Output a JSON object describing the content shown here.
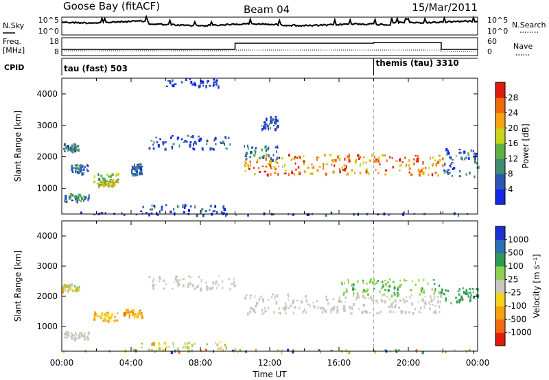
{
  "header": {
    "station": "Goose Bay (fitACF)",
    "beam": "Beam 04",
    "date": "15/Mar/2011"
  },
  "noise_panel": {
    "left_label": "N.Sky",
    "right_label": "N.Search",
    "left_ticks": [
      "10^5",
      "10^0"
    ],
    "right_ticks": [
      "10^5",
      "10^0"
    ]
  },
  "freq_panel": {
    "left_label_1": "Freq.",
    "left_label_2": "[MHz]",
    "right_label": "Nave",
    "left_ticks": [
      "18",
      "8"
    ],
    "right_ticks": [
      "60",
      "0"
    ]
  },
  "cpid_panel": {
    "label": "CPID",
    "mode_1": "tau (fast) 503",
    "mode_2": "themis (tau) 3310",
    "mode_2_start_hour": 18
  },
  "chart_data": [
    {
      "type": "heatmap",
      "title": "",
      "quantity": "Power",
      "ylabel": "Slant Range [km]",
      "yticks": [
        1000,
        2000,
        3000,
        4000
      ],
      "ylim": [
        180,
        4500
      ],
      "xlim_hours": [
        0,
        24
      ],
      "colorbar_label": "Power [dB]",
      "colorbar_ticks": [
        "4",
        "8",
        "12",
        "16",
        "20",
        "24",
        "28"
      ],
      "colorbar_colors": [
        "#1428e6",
        "#2a56b4",
        "#3f8c73",
        "#5fb045",
        "#c9d41c",
        "#f5a40f",
        "#f06a0c",
        "#e01b10"
      ],
      "scatter_regions": [
        {
          "t": [
            0.0,
            1.0
          ],
          "r": [
            2200,
            2450
          ],
          "level": [
            0.1,
            0.5
          ]
        },
        {
          "t": [
            0.1,
            1.6
          ],
          "r": [
            600,
            850
          ],
          "level": [
            0.1,
            0.5
          ]
        },
        {
          "t": [
            0.5,
            1.5
          ],
          "r": [
            1500,
            1800
          ],
          "level": [
            0.1,
            0.4
          ]
        },
        {
          "t": [
            1.8,
            3.2
          ],
          "r": [
            1200,
            1500
          ],
          "level": [
            0.3,
            0.6
          ]
        },
        {
          "t": [
            2.0,
            3.0
          ],
          "r": [
            1100,
            1250
          ],
          "level": [
            0.4,
            0.7
          ]
        },
        {
          "t": [
            4.0,
            4.6
          ],
          "r": [
            1450,
            1800
          ],
          "level": [
            0.1,
            0.4
          ]
        },
        {
          "t": [
            5.0,
            10.0
          ],
          "r": [
            2250,
            2700
          ],
          "level": [
            0.0,
            0.3
          ]
        },
        {
          "t": [
            6.0,
            9.0
          ],
          "r": [
            4250,
            4500
          ],
          "level": [
            0.0,
            0.2
          ]
        },
        {
          "t": [
            4.5,
            9.5
          ],
          "r": [
            200,
            500
          ],
          "level": [
            0.0,
            0.3
          ]
        },
        {
          "t": [
            10.5,
            22.0
          ],
          "r": [
            1450,
            2100
          ],
          "level": [
            0.5,
            1.0
          ]
        },
        {
          "t": [
            10.5,
            12.5
          ],
          "r": [
            1900,
            2400
          ],
          "level": [
            0.1,
            0.5
          ]
        },
        {
          "t": [
            11.5,
            12.5
          ],
          "r": [
            2900,
            3300
          ],
          "level": [
            0.0,
            0.3
          ]
        },
        {
          "t": [
            22.0,
            24.0
          ],
          "r": [
            1400,
            2300
          ],
          "level": [
            0.0,
            0.4
          ]
        },
        {
          "t": [
            0.0,
            24.0
          ],
          "r": [
            180,
            260
          ],
          "level": [
            0.0,
            0.3
          ]
        }
      ]
    },
    {
      "type": "heatmap",
      "title": "",
      "quantity": "Velocity",
      "ylabel": "Slant Range [km]",
      "yticks": [
        1000,
        2000,
        3000,
        4000
      ],
      "ylim": [
        180,
        4500
      ],
      "xlim_hours": [
        0,
        24
      ],
      "xticks": [
        "00:00",
        "04:00",
        "08:00",
        "12:00",
        "16:00",
        "20:00",
        "00:00"
      ],
      "xlabel": "Time UT",
      "colorbar_label": "Velocity [m s⁻¹]",
      "colorbar_ticks": [
        "1000",
        "500",
        "100",
        "25",
        "-25",
        "-100",
        "-500",
        "-1000"
      ],
      "colorbar_colors": [
        "#1b2fd2",
        "#2a6fb8",
        "#2f9a55",
        "#8bd34c",
        "#c8c8c0",
        "#f5d21c",
        "#f5a00f",
        "#f06a12",
        "#e01b10"
      ],
      "scatter_regions": [
        {
          "t": [
            0.0,
            1.0
          ],
          "r": [
            2200,
            2450
          ],
          "level": [
            0.35,
            0.75
          ]
        },
        {
          "t": [
            0.1,
            1.6
          ],
          "r": [
            600,
            850
          ],
          "level": [
            0.45,
            0.5
          ]
        },
        {
          "t": [
            1.8,
            3.2
          ],
          "r": [
            1200,
            1500
          ],
          "level": [
            0.55,
            0.8
          ]
        },
        {
          "t": [
            3.5,
            4.6
          ],
          "r": [
            1350,
            1600
          ],
          "level": [
            0.6,
            0.8
          ]
        },
        {
          "t": [
            5.0,
            10.0
          ],
          "r": [
            2250,
            2700
          ],
          "level": [
            0.45,
            0.5
          ]
        },
        {
          "t": [
            4.5,
            9.5
          ],
          "r": [
            200,
            500
          ],
          "level": [
            0.3,
            0.75
          ]
        },
        {
          "t": [
            10.5,
            22.0
          ],
          "r": [
            1450,
            2100
          ],
          "level": [
            0.45,
            0.5
          ]
        },
        {
          "t": [
            16.0,
            22.0
          ],
          "r": [
            2050,
            2600
          ],
          "level": [
            0.3,
            0.4
          ]
        },
        {
          "t": [
            22.0,
            24.0
          ],
          "r": [
            1800,
            2300
          ],
          "level": [
            0.25,
            0.35
          ]
        },
        {
          "t": [
            0.0,
            24.0
          ],
          "r": [
            180,
            260
          ],
          "level": [
            0.0,
            0.9
          ]
        }
      ]
    }
  ]
}
